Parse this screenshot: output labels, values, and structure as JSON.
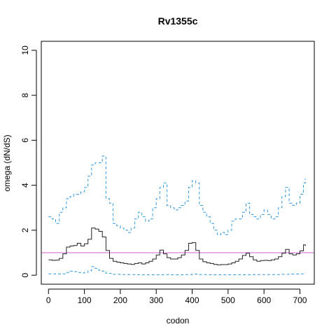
{
  "chart_data": {
    "type": "line",
    "title": "Rv1355c",
    "xlabel": "codon",
    "ylabel": "omega (dN/dS)",
    "xlim": [
      -20,
      740
    ],
    "ylim": [
      -0.4,
      10.4
    ],
    "x_ticks": [
      0,
      100,
      200,
      300,
      400,
      500,
      600,
      700
    ],
    "x_tick_labels": [
      "0",
      "100",
      "200",
      "300",
      "400",
      "500",
      "600",
      "700"
    ],
    "y_ticks": [
      0,
      2,
      4,
      6,
      8,
      10
    ],
    "y_tick_labels": [
      "0",
      "2",
      "4",
      "6",
      "8",
      "10"
    ],
    "grid": false,
    "reference_line": {
      "y": 1,
      "color": "#cc66cc"
    },
    "series": [
      {
        "style": "dashed",
        "color": "#3399dd",
        "x": [
          0,
          10,
          20,
          30,
          40,
          50,
          60,
          70,
          80,
          90,
          100,
          110,
          120,
          130,
          140,
          150,
          160,
          170,
          180,
          190,
          200,
          210,
          220,
          230,
          240,
          250,
          260,
          270,
          280,
          290,
          300,
          310,
          320,
          330,
          340,
          350,
          360,
          370,
          380,
          390,
          400,
          410,
          420,
          430,
          440,
          450,
          460,
          470,
          480,
          490,
          500,
          510,
          520,
          530,
          540,
          550,
          560,
          570,
          580,
          590,
          600,
          610,
          620,
          630,
          640,
          650,
          660,
          670,
          680,
          690,
          700,
          710,
          715
        ],
        "values": [
          2.6,
          2.5,
          2.3,
          2.8,
          3.0,
          3.4,
          3.5,
          3.6,
          3.6,
          3.7,
          3.9,
          4.4,
          4.9,
          5.0,
          5.0,
          5.3,
          3.4,
          3.2,
          2.3,
          2.2,
          2.1,
          2.0,
          1.9,
          2.1,
          2.5,
          2.8,
          2.6,
          2.4,
          2.5,
          3.0,
          3.4,
          3.9,
          4.1,
          3.1,
          3.0,
          2.9,
          3.0,
          3.1,
          3.3,
          3.9,
          4.2,
          4.1,
          3.1,
          2.8,
          2.6,
          2.3,
          2.0,
          1.8,
          1.9,
          1.8,
          2.0,
          2.4,
          2.5,
          2.5,
          2.8,
          3.2,
          2.7,
          2.6,
          2.5,
          2.7,
          2.9,
          2.7,
          2.5,
          2.6,
          3.0,
          3.5,
          3.9,
          3.2,
          3.1,
          3.2,
          3.6,
          4.1,
          4.3
        ]
      },
      {
        "style": "solid",
        "color": "#222222",
        "x": [
          0,
          10,
          20,
          30,
          40,
          50,
          60,
          70,
          80,
          90,
          100,
          110,
          120,
          130,
          140,
          150,
          160,
          170,
          180,
          190,
          200,
          210,
          220,
          230,
          240,
          250,
          260,
          270,
          280,
          290,
          300,
          310,
          320,
          330,
          340,
          350,
          360,
          370,
          380,
          390,
          400,
          410,
          420,
          430,
          440,
          450,
          460,
          470,
          480,
          490,
          500,
          510,
          520,
          530,
          540,
          550,
          560,
          570,
          580,
          590,
          600,
          610,
          620,
          630,
          640,
          650,
          660,
          670,
          680,
          690,
          700,
          710,
          715
        ],
        "values": [
          0.68,
          0.66,
          0.67,
          0.75,
          0.95,
          1.25,
          1.3,
          1.32,
          1.42,
          1.3,
          1.4,
          1.6,
          2.1,
          2.05,
          1.95,
          1.7,
          1.1,
          0.75,
          0.62,
          0.58,
          0.55,
          0.52,
          0.5,
          0.48,
          0.52,
          0.55,
          0.5,
          0.55,
          0.62,
          0.72,
          0.9,
          1.12,
          0.95,
          0.78,
          0.72,
          0.72,
          0.78,
          0.9,
          1.1,
          1.42,
          1.45,
          1.1,
          0.72,
          0.6,
          0.55,
          0.52,
          0.48,
          0.46,
          0.47,
          0.47,
          0.5,
          0.55,
          0.62,
          0.72,
          0.88,
          0.98,
          0.82,
          0.68,
          0.62,
          0.65,
          0.66,
          0.65,
          0.68,
          0.72,
          0.82,
          0.98,
          1.15,
          0.95,
          0.9,
          0.95,
          1.08,
          1.35,
          1.3
        ]
      },
      {
        "style": "dashed",
        "color": "#3399dd",
        "x": [
          0,
          20,
          40,
          50,
          60,
          70,
          80,
          90,
          100,
          110,
          120,
          130,
          140,
          150,
          160,
          180,
          200,
          250,
          300,
          320,
          340,
          380,
          400,
          420,
          450,
          500,
          550,
          570,
          600,
          650,
          670,
          700,
          715
        ],
        "values": [
          0.06,
          0.05,
          0.06,
          0.12,
          0.18,
          0.16,
          0.12,
          0.1,
          0.12,
          0.2,
          0.38,
          0.3,
          0.22,
          0.18,
          0.08,
          0.04,
          0.03,
          0.02,
          0.02,
          0.03,
          0.02,
          0.03,
          0.05,
          0.03,
          0.02,
          0.02,
          0.02,
          0.03,
          0.03,
          0.04,
          0.05,
          0.06,
          0.1
        ]
      }
    ]
  }
}
